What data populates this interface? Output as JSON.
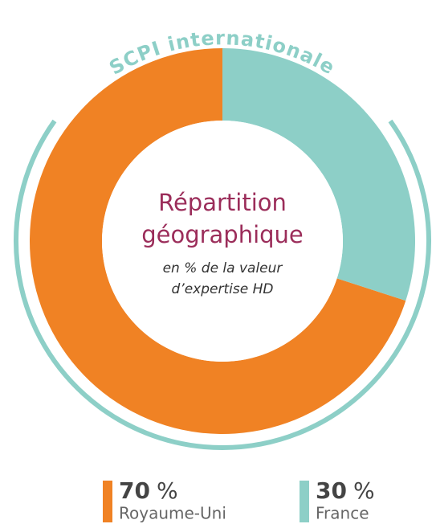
{
  "chart_data": {
    "type": "donut",
    "arc_label": "SCPI internationale",
    "title": [
      "Répartition",
      "géographique"
    ],
    "subtitle": [
      "en % de la valeur",
      "d’expertise HD"
    ],
    "unit": "%",
    "categories": [
      "Royaume-Uni",
      "France"
    ],
    "values": [
      70,
      30
    ],
    "colors": [
      "#f08224",
      "#8dcfc7"
    ],
    "accent_color": "#8dcfc7",
    "title_color": "#9b2d5a"
  }
}
